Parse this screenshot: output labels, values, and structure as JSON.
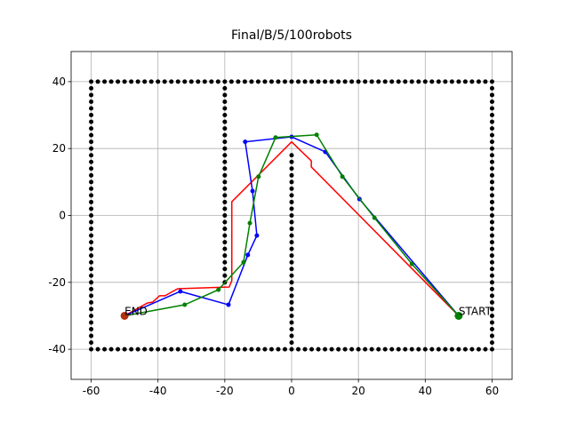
{
  "chart_data": {
    "type": "line",
    "title": "Final/B/5/100robots",
    "xlim": [
      -66,
      66
    ],
    "ylim": [
      -49,
      49
    ],
    "xticks": [
      -60,
      -40,
      -20,
      0,
      20,
      40,
      60
    ],
    "yticks": [
      -40,
      -20,
      0,
      20,
      40
    ],
    "grid": true,
    "series": [
      {
        "color": "#000000",
        "line": false,
        "markers": true,
        "marker_size": 2.5,
        "x": [
          -60,
          -58,
          -56,
          -54,
          -52,
          -50,
          -48,
          -46,
          -44,
          -42,
          -40,
          -38,
          -36,
          -34,
          -32,
          -30,
          -28,
          -26,
          -24,
          -22,
          -20,
          -18,
          -16,
          -14,
          -12,
          -10,
          -8,
          -6,
          -4,
          -2,
          0,
          2,
          4,
          6,
          8,
          10,
          12,
          14,
          16,
          18,
          20,
          22,
          24,
          26,
          28,
          30,
          32,
          34,
          36,
          38,
          40,
          42,
          44,
          46,
          48,
          50,
          52,
          54,
          56,
          58,
          60
        ],
        "y": [
          40,
          40,
          40,
          40,
          40,
          40,
          40,
          40,
          40,
          40,
          40,
          40,
          40,
          40,
          40,
          40,
          40,
          40,
          40,
          40,
          40,
          40,
          40,
          40,
          40,
          40,
          40,
          40,
          40,
          40,
          40,
          40,
          40,
          40,
          40,
          40,
          40,
          40,
          40,
          40,
          40,
          40,
          40,
          40,
          40,
          40,
          40,
          40,
          40,
          40,
          40,
          40,
          40,
          40,
          40,
          40,
          40,
          40,
          40,
          40,
          40
        ]
      },
      {
        "color": "#000000",
        "line": false,
        "markers": true,
        "marker_size": 2.5,
        "x": [
          -60,
          -58,
          -56,
          -54,
          -52,
          -50,
          -48,
          -46,
          -44,
          -42,
          -40,
          -38,
          -36,
          -34,
          -32,
          -30,
          -28,
          -26,
          -24,
          -22,
          -20,
          -18,
          -16,
          -14,
          -12,
          -10,
          -8,
          -6,
          -4,
          -2,
          0,
          2,
          4,
          6,
          8,
          10,
          12,
          14,
          16,
          18,
          20,
          22,
          24,
          26,
          28,
          30,
          32,
          34,
          36,
          38,
          40,
          42,
          44,
          46,
          48,
          50,
          52,
          54,
          56,
          58,
          60
        ],
        "y": [
          -40,
          -40,
          -40,
          -40,
          -40,
          -40,
          -40,
          -40,
          -40,
          -40,
          -40,
          -40,
          -40,
          -40,
          -40,
          -40,
          -40,
          -40,
          -40,
          -40,
          -40,
          -40,
          -40,
          -40,
          -40,
          -40,
          -40,
          -40,
          -40,
          -40,
          -40,
          -40,
          -40,
          -40,
          -40,
          -40,
          -40,
          -40,
          -40,
          -40,
          -40,
          -40,
          -40,
          -40,
          -40,
          -40,
          -40,
          -40,
          -40,
          -40,
          -40,
          -40,
          -40,
          -40,
          -40,
          -40,
          -40,
          -40,
          -40,
          -40,
          -40
        ]
      },
      {
        "color": "#000000",
        "line": false,
        "markers": true,
        "marker_size": 2.5,
        "x": [
          -60,
          -60,
          -60,
          -60,
          -60,
          -60,
          -60,
          -60,
          -60,
          -60,
          -60,
          -60,
          -60,
          -60,
          -60,
          -60,
          -60,
          -60,
          -60,
          -60,
          -60,
          -60,
          -60,
          -60,
          -60,
          -60,
          -60,
          -60,
          -60,
          -60,
          -60,
          -60,
          -60,
          -60,
          -60,
          -60,
          -60,
          -60,
          -60
        ],
        "y": [
          -38,
          -36,
          -34,
          -32,
          -30,
          -28,
          -26,
          -24,
          -22,
          -20,
          -18,
          -16,
          -14,
          -12,
          -10,
          -8,
          -6,
          -4,
          -2,
          0,
          2,
          4,
          6,
          8,
          10,
          12,
          14,
          16,
          18,
          20,
          22,
          24,
          26,
          28,
          30,
          32,
          34,
          36,
          38
        ]
      },
      {
        "color": "#000000",
        "line": false,
        "markers": true,
        "marker_size": 2.5,
        "x": [
          60,
          60,
          60,
          60,
          60,
          60,
          60,
          60,
          60,
          60,
          60,
          60,
          60,
          60,
          60,
          60,
          60,
          60,
          60,
          60,
          60,
          60,
          60,
          60,
          60,
          60,
          60,
          60,
          60,
          60,
          60,
          60,
          60,
          60,
          60,
          60,
          60,
          60,
          60
        ],
        "y": [
          -38,
          -36,
          -34,
          -32,
          -30,
          -28,
          -26,
          -24,
          -22,
          -20,
          -18,
          -16,
          -14,
          -12,
          -10,
          -8,
          -6,
          -4,
          -2,
          0,
          2,
          4,
          6,
          8,
          10,
          12,
          14,
          16,
          18,
          20,
          22,
          24,
          26,
          28,
          30,
          32,
          34,
          36,
          38
        ]
      },
      {
        "color": "#000000",
        "line": false,
        "markers": true,
        "marker_size": 2.5,
        "x": [
          -20,
          -20,
          -20,
          -20,
          -20,
          -20,
          -20,
          -20,
          -20,
          -20,
          -20,
          -20,
          -20,
          -20,
          -20,
          -20,
          -20,
          -20,
          -20,
          -20,
          -20,
          -20,
          -20,
          -20,
          -20,
          -20,
          -20,
          -20,
          -20,
          -20
        ],
        "y": [
          -20,
          -18,
          -16,
          -14,
          -12,
          -10,
          -8,
          -6,
          -4,
          -2,
          0,
          2,
          4,
          6,
          8,
          10,
          12,
          14,
          16,
          18,
          20,
          22,
          24,
          26,
          28,
          30,
          32,
          34,
          36,
          38
        ]
      },
      {
        "color": "#000000",
        "line": false,
        "markers": true,
        "marker_size": 2.5,
        "x": [
          0,
          0,
          0,
          0,
          0,
          0,
          0,
          0,
          0,
          0,
          0,
          0,
          0,
          0,
          0,
          0,
          0,
          0,
          0,
          0,
          0,
          0,
          0,
          0,
          0,
          0,
          0,
          0,
          0
        ],
        "y": [
          -38,
          -36,
          -34,
          -32,
          -30,
          -28,
          -26,
          -24,
          -22,
          -20,
          -18,
          -16,
          -14,
          -12,
          -10,
          -8,
          -6,
          -4,
          -2,
          0,
          2,
          4,
          6,
          8,
          10,
          12,
          14,
          16,
          18
        ]
      },
      {
        "color": "#ff0000",
        "line": true,
        "markers": false,
        "marker_size": 0,
        "x": [
          50,
          5.9,
          5.9,
          0,
          -17.9,
          -17.9,
          -18.7,
          -34.1,
          -37.9,
          -39.5,
          -41.6,
          -43.2,
          -50
        ],
        "y": [
          -30,
          14.5,
          16.3,
          22,
          4.1,
          -19.5,
          -21.4,
          -21.9,
          -24,
          -24,
          -25.9,
          -26.2,
          -30
        ]
      },
      {
        "color": "#0000ff",
        "line": true,
        "markers": true,
        "marker_size": 2.5,
        "x": [
          50,
          20.3,
          10.1,
          0,
          -13.9,
          -11.7,
          -10.4,
          -13.1,
          -18.9,
          -33.3,
          -50
        ],
        "y": [
          -30,
          4.9,
          19,
          23.5,
          22,
          7.3,
          -6,
          -11.8,
          -26.7,
          -22.7,
          -30
        ]
      },
      {
        "color": "#008000",
        "line": true,
        "markers": true,
        "marker_size": 2.5,
        "x": [
          50,
          36,
          24.8,
          15.2,
          7.5,
          -4.8,
          -9.9,
          -12.5,
          -14.4,
          -21.9,
          -32,
          -50
        ],
        "y": [
          -30,
          -14.5,
          -0.7,
          11.6,
          24.1,
          23.3,
          11.6,
          -2.3,
          -14,
          -22.2,
          -26.7,
          -30
        ]
      },
      {
        "color": "#008000",
        "line": false,
        "markers": true,
        "marker_size": 4.5,
        "x": [
          50
        ],
        "y": [
          -30
        ]
      },
      {
        "color": "#b03010",
        "line": false,
        "markers": true,
        "marker_size": 4.5,
        "x": [
          -50
        ],
        "y": [
          -30
        ]
      }
    ],
    "annotations": [
      {
        "text": "START",
        "x": 50,
        "y": -30
      },
      {
        "text": "END",
        "x": -50,
        "y": -30
      }
    ]
  }
}
